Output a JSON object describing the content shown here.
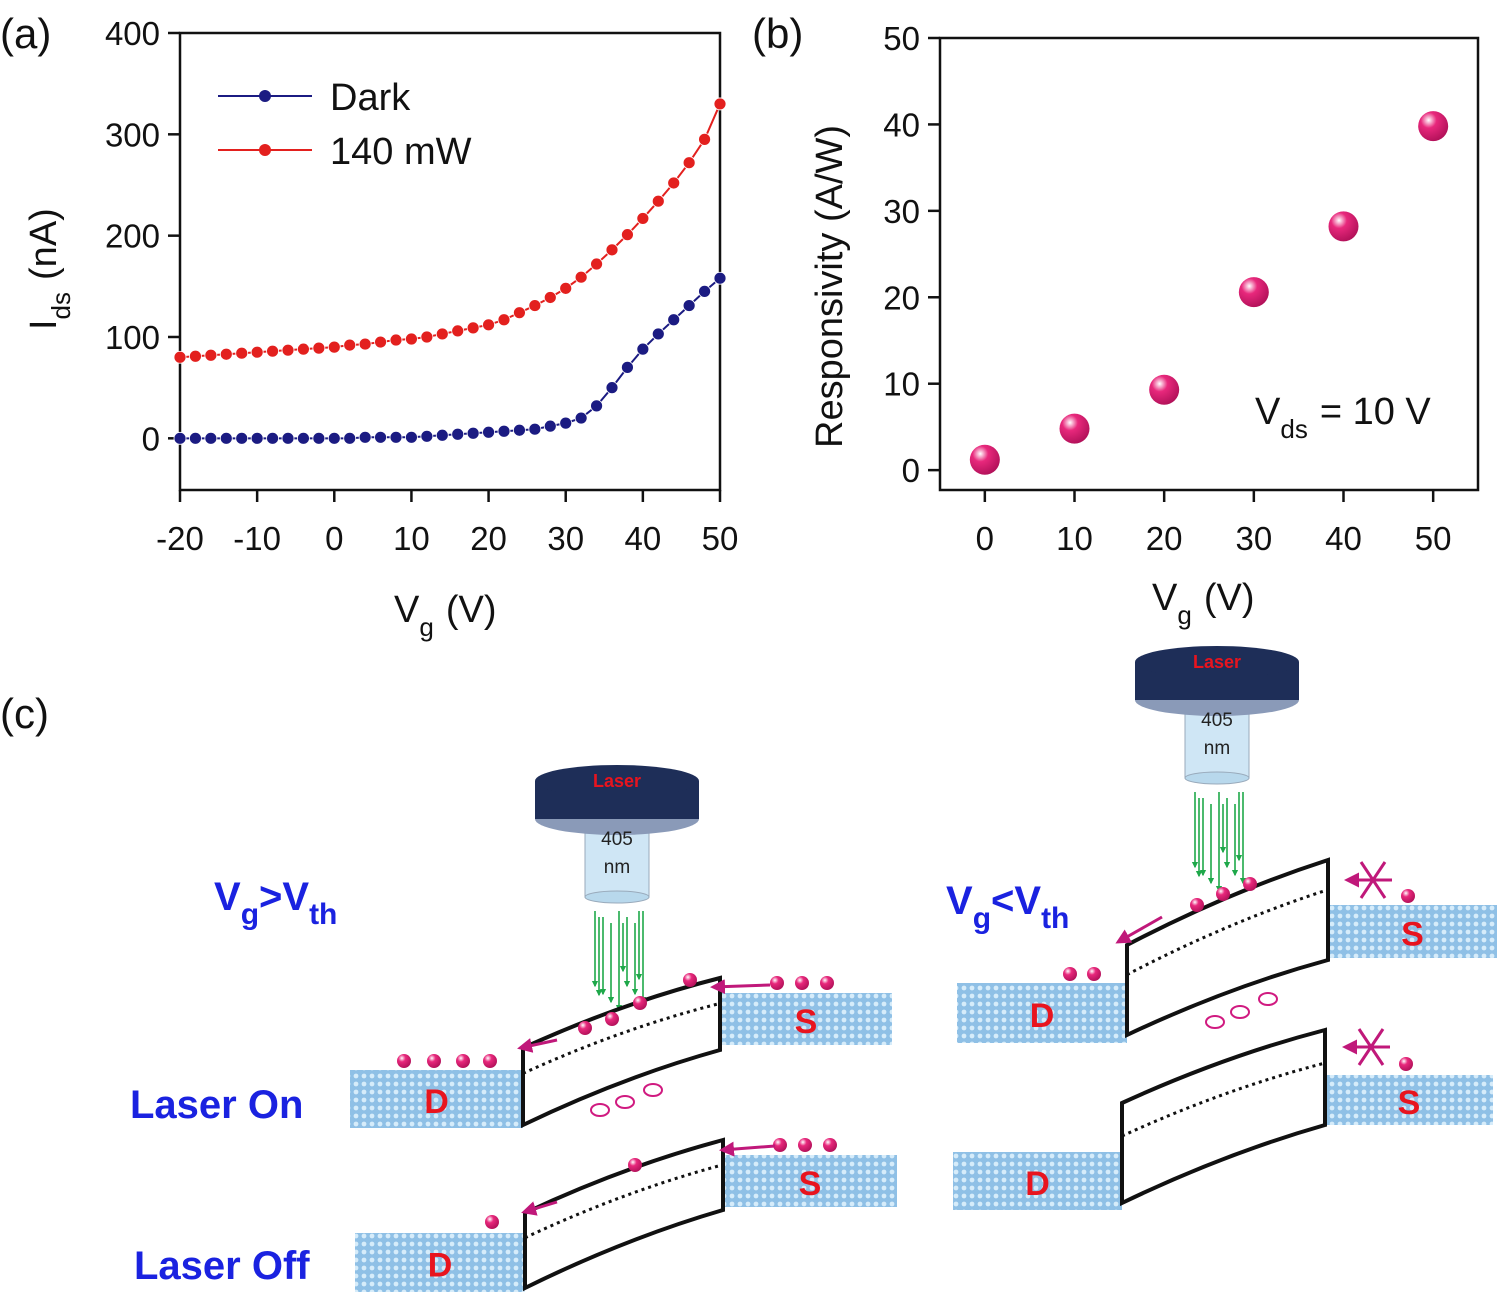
{
  "chart_data": [
    {
      "type": "line",
      "label": "(a)",
      "xlabel": {
        "text": "V",
        "sub": "g",
        "unit": "(V)"
      },
      "ylabel": {
        "text": "I",
        "sub": "ds",
        "unit": "(nA)"
      },
      "x": [
        -20,
        -18,
        -16,
        -14,
        -12,
        -10,
        -8,
        -6,
        -4,
        -2,
        0,
        2,
        4,
        6,
        8,
        10,
        12,
        14,
        16,
        18,
        20,
        22,
        24,
        26,
        28,
        30,
        32,
        34,
        36,
        38,
        40,
        42,
        44,
        46,
        48,
        50
      ],
      "series": [
        {
          "name": "Dark",
          "color": "#1b1b82",
          "values": [
            0,
            0,
            0,
            0,
            0,
            0,
            0,
            0,
            0,
            0,
            0,
            0,
            1,
            1,
            1,
            1,
            2,
            3,
            4,
            5,
            6,
            7,
            8,
            9,
            12,
            15,
            20,
            32,
            50,
            70,
            88,
            103,
            117,
            131,
            145,
            158
          ]
        },
        {
          "name": "140 mW",
          "color": "#e3201e",
          "values": [
            80,
            81,
            82,
            83,
            84,
            85,
            86,
            87,
            88,
            89,
            90,
            92,
            93,
            95,
            97,
            98,
            100,
            103,
            106,
            109,
            112,
            117,
            124,
            131,
            139,
            148,
            159,
            172,
            186,
            201,
            217,
            234,
            252,
            272,
            295,
            330
          ]
        }
      ],
      "xlim": [
        -20,
        50
      ],
      "xticks": [
        -20,
        -10,
        0,
        10,
        20,
        30,
        40,
        50
      ],
      "ylim": [
        -51,
        400
      ],
      "yticks": [
        0,
        100,
        200,
        300,
        400
      ],
      "legend": "upper left"
    },
    {
      "type": "scatter",
      "label": "(b)",
      "xlabel": {
        "text": "V",
        "sub": "g",
        "unit": "(V)"
      },
      "ylabel": {
        "text": "Responsivity (A/W)"
      },
      "annotation": {
        "text": "V",
        "sub": "ds",
        "rest": "= 10 V"
      },
      "x": [
        0,
        10,
        20,
        30,
        40,
        50
      ],
      "values": [
        1.2,
        4.8,
        9.3,
        20.6,
        28.2,
        39.8
      ],
      "color": "#e8287c",
      "xlim": [
        -5,
        55
      ],
      "xticks": [
        0,
        10,
        20,
        30,
        40,
        50
      ],
      "ylim": [
        -2.3,
        50
      ],
      "yticks": [
        0,
        10,
        20,
        30,
        40,
        50
      ]
    }
  ],
  "diagram": {
    "label": "(c)",
    "lasers": [
      {
        "name": "Laser",
        "wavelength": "405",
        "unit": "nm"
      },
      {
        "name": "Laser",
        "wavelength": "405",
        "unit": "nm"
      }
    ],
    "conditions": [
      [
        "V",
        "g",
        ">V",
        "th"
      ],
      [
        "V",
        "g",
        "<V",
        "th"
      ]
    ],
    "modes": [
      "Laser On",
      "Laser Off"
    ],
    "panels": [
      {
        "drain": "D",
        "source": "S"
      },
      {
        "drain": "D",
        "source": "S"
      },
      {
        "drain": "D",
        "source": "S"
      },
      {
        "drain": "D",
        "source": "S"
      }
    ]
  }
}
